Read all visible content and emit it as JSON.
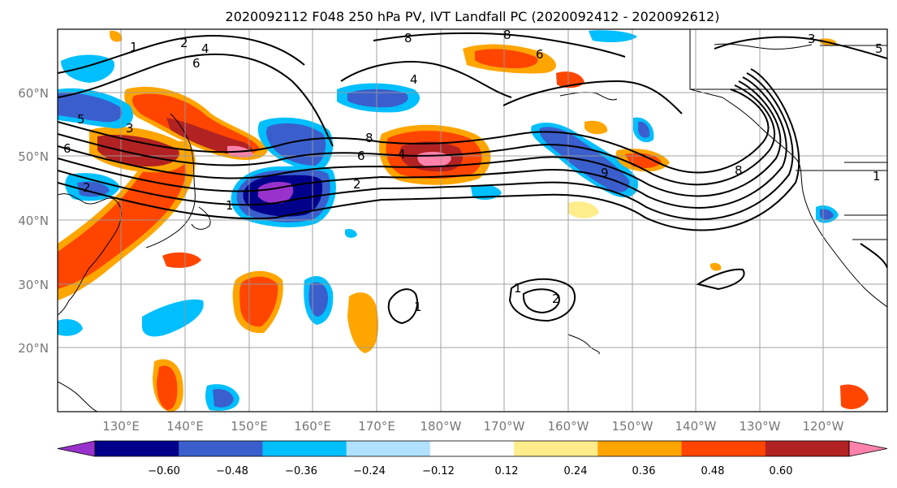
{
  "title": "2020092112 F048 250 hPa PV, IVT Landfall PC (2020092412 - 2020092612)",
  "lat_labels": [
    "60°N",
    "50°N",
    "40°N",
    "30°N",
    "20°N"
  ],
  "lon_labels": [
    "130°E",
    "140°E",
    "150°E",
    "160°E",
    "170°E",
    "180°W",
    "170°W",
    "160°W",
    "150°W",
    "140°W",
    "130°W",
    "120°W"
  ],
  "colorbar": {
    "colors": [
      "#9932cc",
      "#00008b",
      "#3a5fcd",
      "#00bfff",
      "#b0e2ff",
      "#ffffff",
      "#ffec8b",
      "#ffa500",
      "#ff4500",
      "#b22222",
      "#ff82ab"
    ],
    "ticks": [
      "−0.60",
      "−0.48",
      "−0.36",
      "−0.24",
      "−0.12",
      "0.12",
      "0.24",
      "0.36",
      "0.48",
      "0.60"
    ]
  },
  "contour_labels": [
    "1",
    "2",
    "3",
    "4",
    "5",
    "6",
    "8",
    "9",
    "8",
    "6",
    "4",
    "2",
    "1",
    "2",
    "1",
    "2",
    "1",
    "8",
    "6",
    "4",
    "3",
    "5",
    "6",
    "8",
    "1"
  ]
}
